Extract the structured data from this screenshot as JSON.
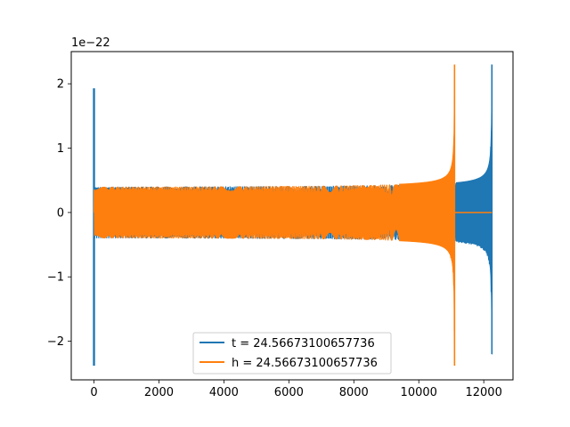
{
  "chart_data": {
    "type": "line",
    "title": "",
    "xlabel": "",
    "ylabel": "",
    "y_offset_label": "1e−22",
    "xlim": [
      -700,
      12900
    ],
    "ylim": [
      -2.6,
      2.5
    ],
    "x_ticks": [
      0,
      2000,
      4000,
      6000,
      8000,
      10000,
      12000
    ],
    "y_ticks": [
      -2,
      -1,
      0,
      1,
      2
    ],
    "grid": false,
    "legend_position": "lower-center",
    "series": [
      {
        "name": "t = 24.56673100657736",
        "color": "#1f77b4",
        "description_points": {
          "start_spike": {
            "x": 0,
            "min": -2.38,
            "max": 1.93
          },
          "inspiral": {
            "x_start": 0,
            "x_end": 12250,
            "amp_start": 0.4,
            "amp_end": 2.3
          },
          "peak": {
            "x": 12250,
            "min": -2.2,
            "max": 2.3
          }
        }
      },
      {
        "name": "h = 24.56673100657736",
        "color": "#ff7f0e",
        "description_points": {
          "inspiral": {
            "x_start": 0,
            "x_end": 11100,
            "amp_start": 0.4,
            "amp_end": 2.3
          },
          "peak": {
            "x": 11100,
            "min": -2.38,
            "max": 2.3
          },
          "flat_after": {
            "x_start": 11100,
            "x_end": 12250,
            "value": 0
          }
        }
      }
    ]
  }
}
